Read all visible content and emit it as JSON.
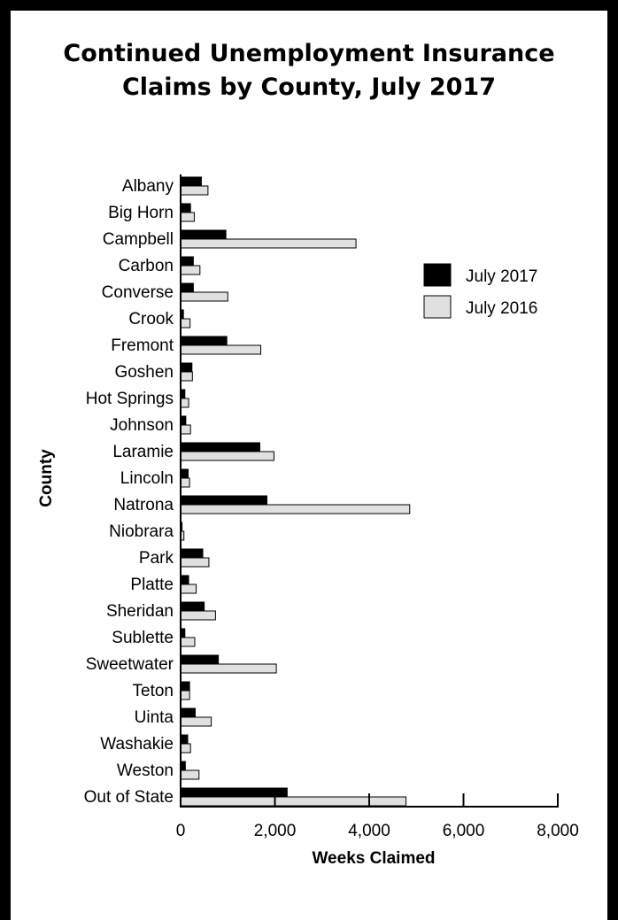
{
  "title_line1": "Continued Unemployment Insurance",
  "title_line2": "Claims by County, July 2017",
  "chart_data": {
    "type": "bar",
    "orientation": "horizontal",
    "title": "Continued Unemployment Insurance Claims by County, July 2017",
    "xlabel": "Weeks Claimed",
    "ylabel": "County",
    "xlim": [
      0,
      8000
    ],
    "xticks": [
      0,
      2000,
      4000,
      6000,
      8000
    ],
    "xtick_labels": [
      "0",
      "2,000",
      "4,000",
      "6,000",
      "8,000"
    ],
    "grid": false,
    "legend_position": "right",
    "categories": [
      "Albany",
      "Big Horn",
      "Campbell",
      "Carbon",
      "Converse",
      "Crook",
      "Fremont",
      "Goshen",
      "Hot Springs",
      "Johnson",
      "Laramie",
      "Lincoln",
      "Natrona",
      "Niobrara",
      "Park",
      "Platte",
      "Sheridan",
      "Sublette",
      "Sweetwater",
      "Teton",
      "Uinta",
      "Washakie",
      "Weston",
      "Out of State"
    ],
    "series": [
      {
        "name": "July 2017",
        "color": "#000000",
        "values": [
          440,
          210,
          960,
          270,
          270,
          60,
          980,
          240,
          90,
          110,
          1680,
          160,
          1830,
          30,
          470,
          170,
          500,
          90,
          800,
          190,
          310,
          150,
          100,
          2260
        ]
      },
      {
        "name": "July 2016",
        "color": "#e0e0e0",
        "values": [
          580,
          290,
          3720,
          410,
          1000,
          200,
          1700,
          250,
          170,
          210,
          1980,
          190,
          4860,
          70,
          600,
          330,
          740,
          300,
          2030,
          190,
          650,
          210,
          390,
          4780
        ]
      }
    ]
  }
}
